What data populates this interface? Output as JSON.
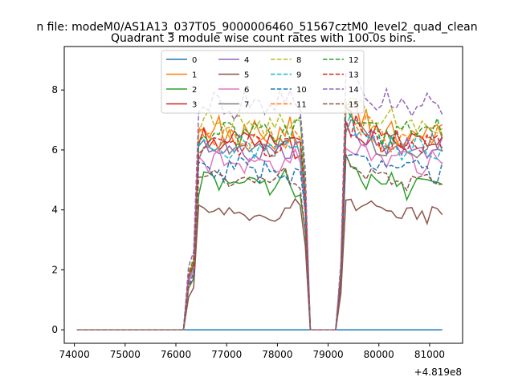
{
  "chart_data": {
    "type": "line",
    "suptitle": "n file: modeM0/AS1A13_037T05_9000006460_51567cztM0_level2_quad_clean",
    "title": "Quadrant 3 module wise count rates with 100.0s bins.",
    "xlabel": "",
    "ylabel": "",
    "x_offset_label": "+4.819e8",
    "xlim": [
      73800,
      81650
    ],
    "ylim": [
      -0.45,
      9.45
    ],
    "x_ticks": [
      74000,
      75000,
      76000,
      77000,
      78000,
      79000,
      80000,
      81000
    ],
    "y_ticks": [
      0,
      2,
      4,
      6,
      8
    ],
    "legend": {
      "placement": "top-center",
      "columns": 4
    },
    "x_start": 74050,
    "x_step": 100,
    "shape_keys": [
      [
        0,
        0
      ],
      [
        21,
        0
      ],
      [
        22,
        0.28
      ],
      [
        23,
        0.35
      ],
      [
        24,
        1
      ],
      [
        44,
        1
      ],
      [
        45,
        0.7
      ],
      [
        46,
        0
      ],
      [
        51,
        0
      ],
      [
        52,
        0.3
      ],
      [
        53,
        1.12
      ],
      [
        61,
        1
      ],
      [
        72,
        1
      ]
    ],
    "series": [
      {
        "name": "0",
        "color": "#1f77b4",
        "dashed": false,
        "level": 0.0,
        "amp": 0.0,
        "seed": 1
      },
      {
        "name": "1",
        "color": "#ff7f0e",
        "dashed": false,
        "level": 6.5,
        "amp": 0.75,
        "seed": 2
      },
      {
        "name": "2",
        "color": "#2ca02c",
        "dashed": false,
        "level": 4.9,
        "amp": 0.6,
        "seed": 3
      },
      {
        "name": "3",
        "color": "#d62728",
        "dashed": false,
        "level": 6.25,
        "amp": 0.6,
        "seed": 4
      },
      {
        "name": "4",
        "color": "#9467bd",
        "dashed": false,
        "level": 6.0,
        "amp": 0.5,
        "seed": 5
      },
      {
        "name": "5",
        "color": "#8c564b",
        "dashed": false,
        "level": 3.9,
        "amp": 0.6,
        "seed": 6
      },
      {
        "name": "6",
        "color": "#e377c2",
        "dashed": false,
        "level": 5.6,
        "amp": 0.5,
        "seed": 7
      },
      {
        "name": "7",
        "color": "#7f7f7f",
        "dashed": false,
        "level": 6.1,
        "amp": 0.5,
        "seed": 8
      },
      {
        "name": "8",
        "color": "#bcbd22",
        "dashed": true,
        "level": 6.9,
        "amp": 0.6,
        "seed": 9
      },
      {
        "name": "9",
        "color": "#17becf",
        "dashed": true,
        "level": 6.1,
        "amp": 0.5,
        "seed": 10
      },
      {
        "name": "10",
        "color": "#1f77b4",
        "dashed": true,
        "level": 5.3,
        "amp": 0.55,
        "seed": 11
      },
      {
        "name": "11",
        "color": "#ff7f0e",
        "dashed": true,
        "level": 6.4,
        "amp": 0.5,
        "seed": 12
      },
      {
        "name": "12",
        "color": "#2ca02c",
        "dashed": true,
        "level": 6.6,
        "amp": 0.6,
        "seed": 13
      },
      {
        "name": "13",
        "color": "#d62728",
        "dashed": true,
        "level": 6.2,
        "amp": 0.55,
        "seed": 14
      },
      {
        "name": "14",
        "color": "#9467bd",
        "dashed": true,
        "level": 7.5,
        "amp": 0.65,
        "seed": 15
      },
      {
        "name": "15",
        "color": "#8c564b",
        "dashed": true,
        "level": 5.0,
        "amp": 0.55,
        "seed": 16
      }
    ]
  }
}
